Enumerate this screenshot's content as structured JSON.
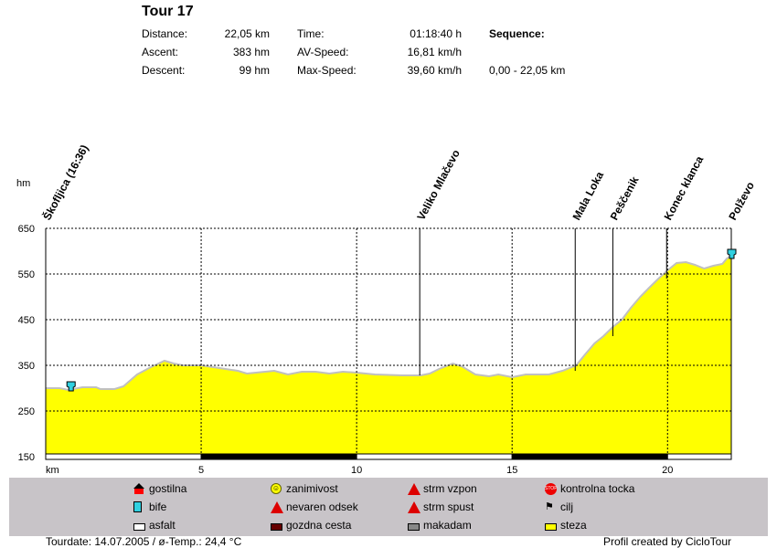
{
  "header": {
    "title": "Tour 17",
    "stats": [
      {
        "label": "Distance:",
        "value": "22,05 km"
      },
      {
        "label": "Ascent:",
        "value": "383 hm"
      },
      {
        "label": "Descent:",
        "value": "99 hm"
      }
    ],
    "stats2": [
      {
        "label": "Time:",
        "value": "01:18:40 h"
      },
      {
        "label": "AV-Speed:",
        "value": "16,81 km/h"
      },
      {
        "label": "Max-Speed:",
        "value": "39,60 km/h"
      }
    ],
    "sequence_label": "Sequence:",
    "sequence_value": "0,00 - 22,05 km"
  },
  "chart_data": {
    "type": "area",
    "ylabel": "hm",
    "xlabel": "km",
    "xlim": [
      0,
      22.05
    ],
    "ylim": [
      150,
      650
    ],
    "yticks": [
      650,
      550,
      450,
      350,
      250,
      150
    ],
    "xticks": [
      5,
      10,
      15,
      20
    ],
    "fill_color": "#ffff00",
    "x": [
      0,
      0.44,
      0.74,
      1.18,
      1.62,
      1.76,
      2.21,
      2.5,
      2.94,
      3.38,
      3.82,
      4.12,
      4.41,
      5,
      5.59,
      6.18,
      6.47,
      7.06,
      7.35,
      7.79,
      8.24,
      8.68,
      9.12,
      9.56,
      10,
      10.59,
      11.47,
      12.06,
      12.35,
      12.65,
      13.09,
      13.38,
      13.82,
      14.26,
      14.56,
      15,
      15.44,
      16.18,
      16.62,
      17.06,
      17.35,
      17.65,
      17.94,
      18.24,
      18.53,
      18.82,
      19.12,
      19.41,
      19.71,
      20,
      20.29,
      20.59,
      20.88,
      21.18,
      21.47,
      21.76,
      21.91,
      22.05
    ],
    "y": [
      300,
      300,
      296,
      302,
      302,
      298,
      298,
      304,
      330,
      346,
      360,
      354,
      350,
      350,
      344,
      338,
      332,
      336,
      338,
      330,
      336,
      336,
      332,
      336,
      334,
      330,
      328,
      328,
      332,
      342,
      354,
      348,
      330,
      326,
      330,
      324,
      330,
      330,
      338,
      350,
      374,
      398,
      414,
      434,
      450,
      476,
      500,
      520,
      540,
      558,
      574,
      576,
      570,
      562,
      568,
      572,
      584,
      590
    ],
    "waypoints": [
      {
        "name": "Škofljica (16:36)",
        "km": 0
      },
      {
        "name": "Veliko Mlačevo",
        "km": 12.03
      },
      {
        "name": "Mala Loka",
        "km": 17.03
      },
      {
        "name": "Peščenik",
        "km": 18.24
      },
      {
        "name": "Konec klanca",
        "km": 19.97
      },
      {
        "name": "Polževo",
        "km": 22.05
      }
    ],
    "markers": [
      {
        "type": "bife",
        "km": 0.8,
        "hm": 306
      },
      {
        "type": "bife",
        "km": 22.05,
        "hm": 596
      }
    ],
    "surface": [
      {
        "from": 0,
        "to": 5,
        "type": "asfalt"
      },
      {
        "from": 5,
        "to": 10,
        "type": "gozdna cesta"
      },
      {
        "from": 10,
        "to": 15,
        "type": "asfalt"
      },
      {
        "from": 15,
        "to": 20,
        "type": "gozdna cesta"
      },
      {
        "from": 20,
        "to": 22.05,
        "type": "asfalt"
      }
    ]
  },
  "legend": [
    [
      "gostilna",
      "zanimivost",
      "strm vzpon",
      "kontrolna tocka"
    ],
    [
      "bife",
      "nevaren odsek",
      "strm spust",
      "cilj"
    ],
    [
      "asfalt",
      "gozdna cesta",
      "makadam",
      "steza"
    ]
  ],
  "footer": {
    "left": "Tourdate: 14.07.2005  /  ø-Temp.: 24,4 °C",
    "right": "Profil created by CicloTour"
  }
}
